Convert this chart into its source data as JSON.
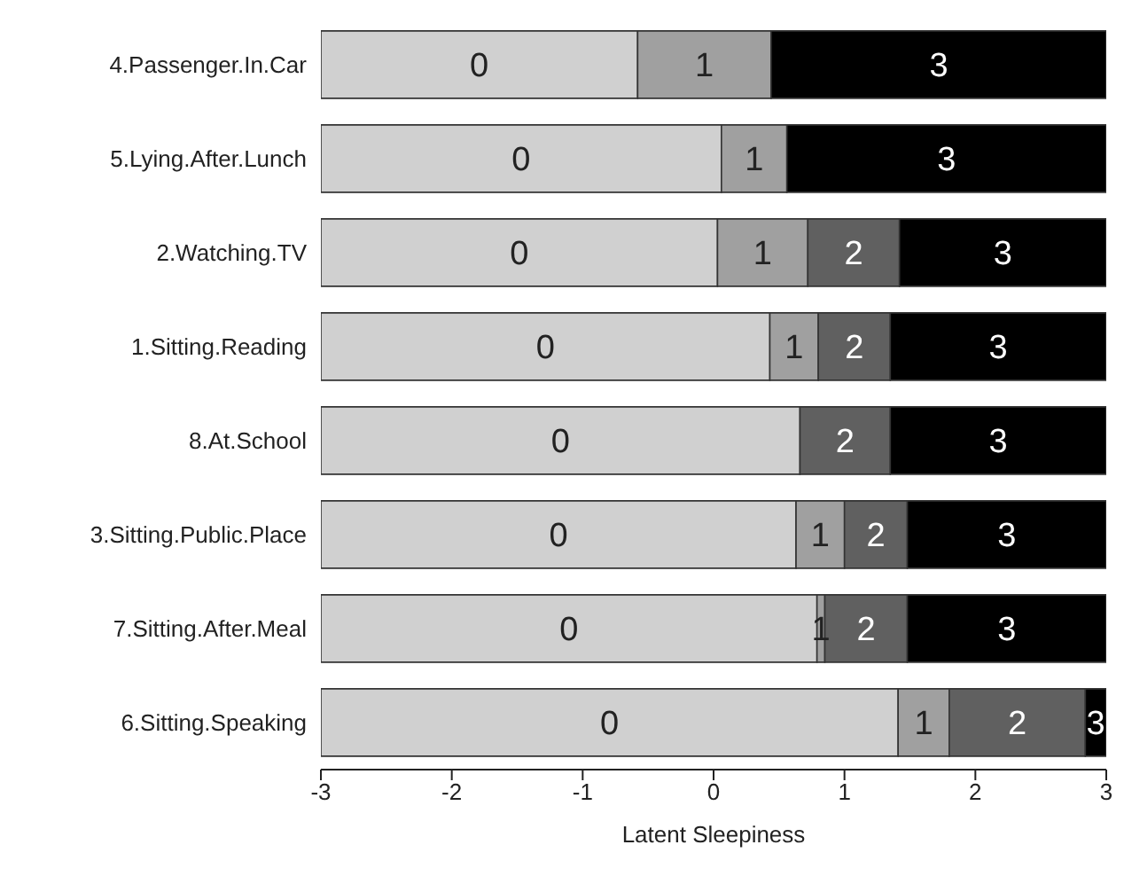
{
  "chart_data": {
    "type": "bar",
    "orientation": "horizontal",
    "xlabel": "Latent Sleepiness",
    "categories": [
      "4.Passenger.In.Car",
      "5.Lying.After.Lunch",
      "2.Watching.TV",
      "1.Sitting.Reading",
      "8.At.School",
      "3.Sitting.Public.Place",
      "7.Sitting.After.Meal",
      "6.Sitting.Speaking"
    ],
    "series": [
      {
        "name": "0",
        "color": "#d0d0d0",
        "base": [
          -3,
          -3,
          -3,
          -3,
          -3,
          -3,
          -3,
          -3
        ],
        "values": [
          2.42,
          3.06,
          3.03,
          3.43,
          3.66,
          3.63,
          3.79,
          4.41
        ]
      },
      {
        "name": "1",
        "color": "#a0a0a0",
        "base": [
          -0.58,
          0.06,
          0.03,
          0.43,
          null,
          0.63,
          0.79,
          1.41
        ],
        "values": [
          1.02,
          0.5,
          0.69,
          0.37,
          null,
          0.37,
          0.06,
          0.39
        ]
      },
      {
        "name": "2",
        "color": "#606060",
        "base": [
          null,
          null,
          0.72,
          0.8,
          0.66,
          1.0,
          0.85,
          1.8
        ],
        "values": [
          null,
          null,
          0.7,
          0.55,
          0.69,
          0.48,
          0.63,
          1.04
        ]
      },
      {
        "name": "3",
        "color": "#000000",
        "base": [
          0.44,
          0.56,
          1.42,
          1.35,
          1.35,
          1.48,
          1.48,
          2.84
        ],
        "values": [
          2.56,
          2.44,
          1.58,
          1.65,
          1.65,
          1.52,
          1.52,
          0.16
        ]
      }
    ],
    "xlim": [
      -3,
      3
    ],
    "xticks": [
      -3,
      -2,
      -1,
      0,
      1,
      2,
      3
    ]
  }
}
